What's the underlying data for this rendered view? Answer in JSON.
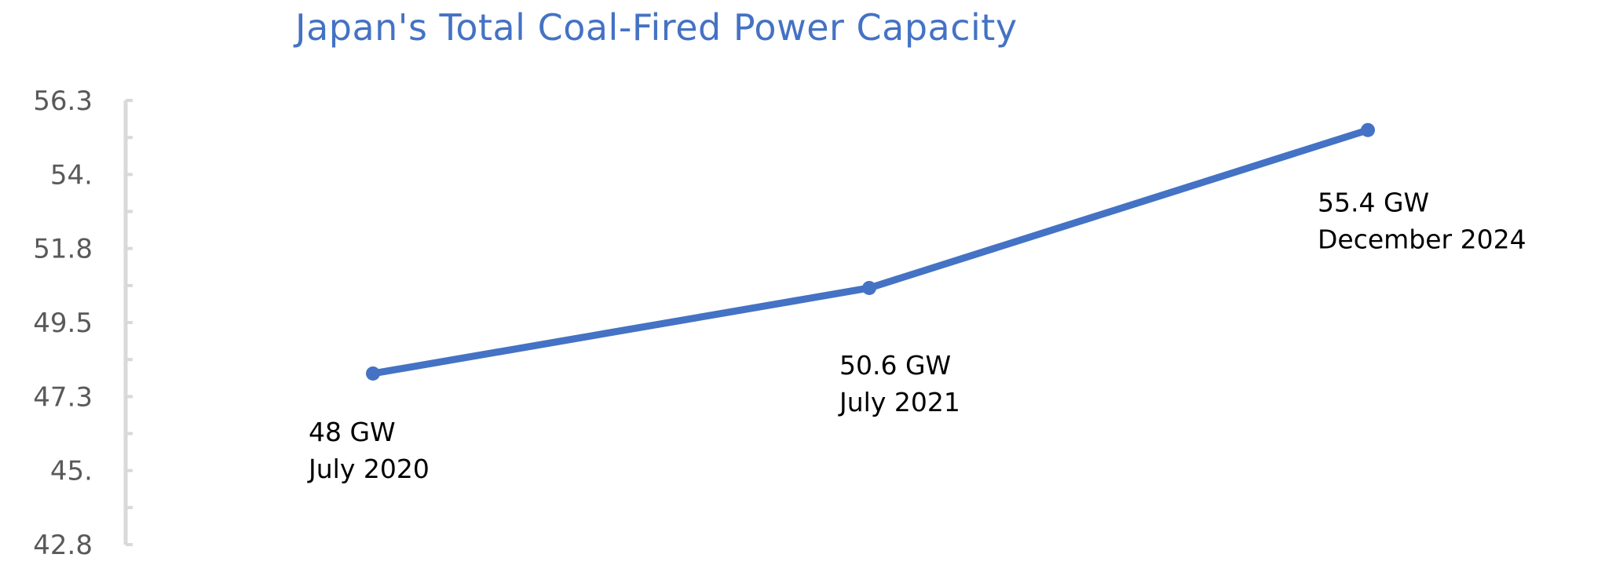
{
  "chart_data": {
    "type": "line",
    "title": "Japan's Total Coal-Fired Power Capacity",
    "xlabel": "",
    "ylabel": "",
    "ylim": [
      42.8,
      56.3
    ],
    "y_tick_labels": [
      "56.3",
      "54.",
      "51.8",
      "49.5",
      "47.3",
      "45.",
      "42.8"
    ],
    "y_tick_values": [
      56.3,
      54.05,
      51.8,
      49.55,
      47.3,
      45.05,
      42.8
    ],
    "grid": false,
    "legend": "none",
    "line_color": "#4472C4",
    "series": [
      {
        "points": [
          {
            "x": "July 2020",
            "y": 48.0,
            "label_value": "48 GW",
            "label_date": "July 2020"
          },
          {
            "x": "July 2021",
            "y": 50.6,
            "label_value": "50.6 GW",
            "label_date": "July 2021"
          },
          {
            "x": "December 2024",
            "y": 55.4,
            "label_value": "55.4 GW",
            "label_date": "December 2024"
          }
        ]
      }
    ]
  }
}
